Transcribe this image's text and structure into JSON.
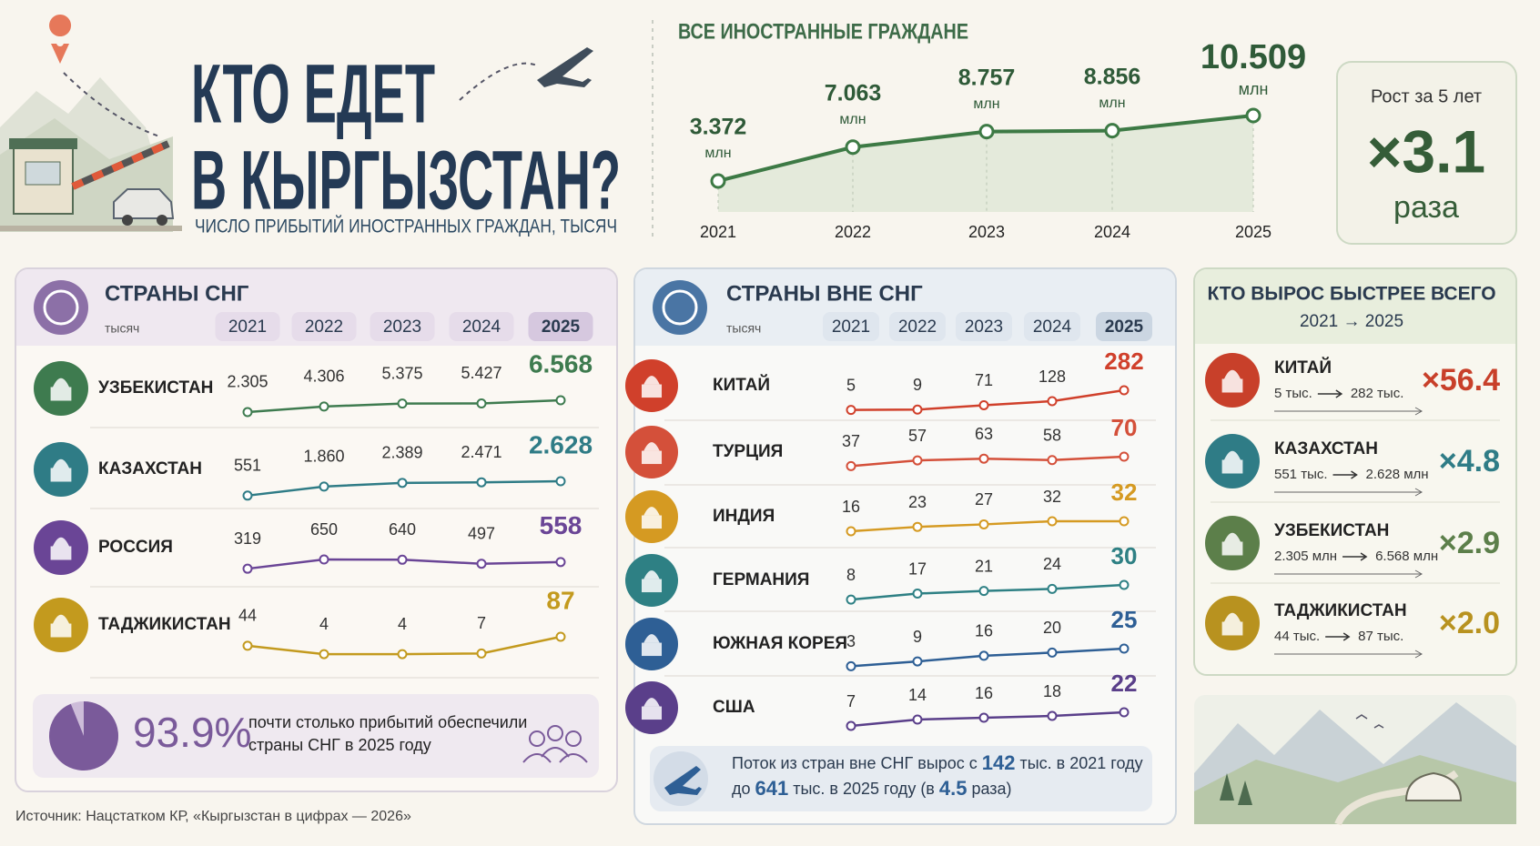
{
  "header": {
    "title_line1": "КТО ЕДЕТ",
    "title_line2": "В КЫРГЫЗСТАН?",
    "subtitle": "ЧИСЛО ПРИБЫТИЙ ИНОСТРАННЫХ ГРАЖДАН, ТЫСЯЧ"
  },
  "growth_box": {
    "label": "Рост за 5 лет",
    "value": "×3.1",
    "unit": "раза"
  },
  "chart_data": [
    {
      "type": "line",
      "title": "ВСЕ ИНОСТРАННЫЕ ГРАЖДАНЕ",
      "categories": [
        "2021",
        "2022",
        "2023",
        "2024",
        "2025"
      ],
      "values": [
        3.372,
        7.063,
        8.757,
        8.856,
        10.509
      ],
      "unit": "млн",
      "color": "#3d7a45"
    },
    {
      "type": "sparklines",
      "title": "СТРАНЫ СНГ",
      "unit": "тысяч",
      "categories": [
        "2021",
        "2022",
        "2023",
        "2024",
        "2025"
      ],
      "series": [
        {
          "name": "УЗБЕКИСТАН",
          "color": "#3e7b4f",
          "values": [
            2305,
            4306,
            5375,
            5427,
            6568
          ],
          "value_labels": [
            "2.305",
            "4.306",
            "5.375",
            "5.427",
            "6.568"
          ]
        },
        {
          "name": "КАЗАХСТАН",
          "color": "#2f7c86",
          "values": [
            551,
            1860,
            2389,
            2471,
            2628
          ],
          "value_labels": [
            "551",
            "1.860",
            "2.389",
            "2.471",
            "2.628"
          ]
        },
        {
          "name": "РОССИЯ",
          "color": "#6a4596",
          "values": [
            319,
            650,
            640,
            497,
            558
          ]
        },
        {
          "name": "ТАДЖИКИСТАН",
          "color": "#c39a1e",
          "values": [
            44,
            4,
            4,
            7,
            87
          ]
        }
      ]
    },
    {
      "type": "pie",
      "values": [
        93.9
      ],
      "value_labels": [
        "93.9%"
      ],
      "caption": [
        "почти столько прибытий обеспечили",
        "страны СНГ в 2025 году"
      ],
      "color": "#7a5a9a"
    },
    {
      "type": "sparklines",
      "title": "СТРАНЫ ВНЕ СНГ",
      "unit": "тысяч",
      "categories": [
        "2021",
        "2022",
        "2023",
        "2024",
        "2025"
      ],
      "series": [
        {
          "name": "КИТАЙ",
          "color": "#d0402b",
          "values": [
            5,
            9,
            71,
            128,
            282
          ]
        },
        {
          "name": "ТУРЦИЯ",
          "color": "#d4503a",
          "values": [
            37,
            57,
            63,
            58,
            70
          ]
        },
        {
          "name": "ИНДИЯ",
          "color": "#d59a22",
          "values": [
            16,
            23,
            27,
            32,
            32
          ]
        },
        {
          "name": "ГЕРМАНИЯ",
          "color": "#2e8084",
          "values": [
            8,
            17,
            21,
            24,
            30
          ]
        },
        {
          "name": "ЮЖНАЯ КОРЕЯ",
          "color": "#2e5f95",
          "values": [
            3,
            9,
            16,
            20,
            25
          ]
        },
        {
          "name": "США",
          "color": "#5a3f8a",
          "values": [
            7,
            14,
            16,
            18,
            22
          ]
        }
      ]
    }
  ],
  "note": {
    "line1": [
      "Поток из стран вне СНГ вырос с",
      "142",
      "тыс. в 2021 году"
    ],
    "line2": [
      "до",
      "641",
      "тыс. в 2025 году (в",
      "4.5",
      "раза)"
    ]
  },
  "fastest": {
    "title": "КТО ВЫРОС БЫСТРЕЕ ВСЕГО",
    "subtitle": "2021 → 2025",
    "items": [
      {
        "name": "КИТАЙ",
        "from": "5 тыс.",
        "to": "282 тыс.",
        "factor": "×56.4",
        "color": "#c8402a"
      },
      {
        "name": "КАЗАХСТАН",
        "from": "551 тыс.",
        "to": "2.628 млн",
        "factor": "×4.8",
        "color": "#2f7c86"
      },
      {
        "name": "УЗБЕКИСТАН",
        "from": "2.305 млн",
        "to": "6.568 млн",
        "factor": "×2.9",
        "color": "#5c7f4a"
      },
      {
        "name": "ТАДЖИКИСТАН",
        "from": "44 тыс.",
        "to": "87 тыс.",
        "factor": "×2.0",
        "color": "#b8921f"
      }
    ]
  },
  "source": "Источник: Нацстатком КР, «Кыргызстан в цифрах — 2026»"
}
